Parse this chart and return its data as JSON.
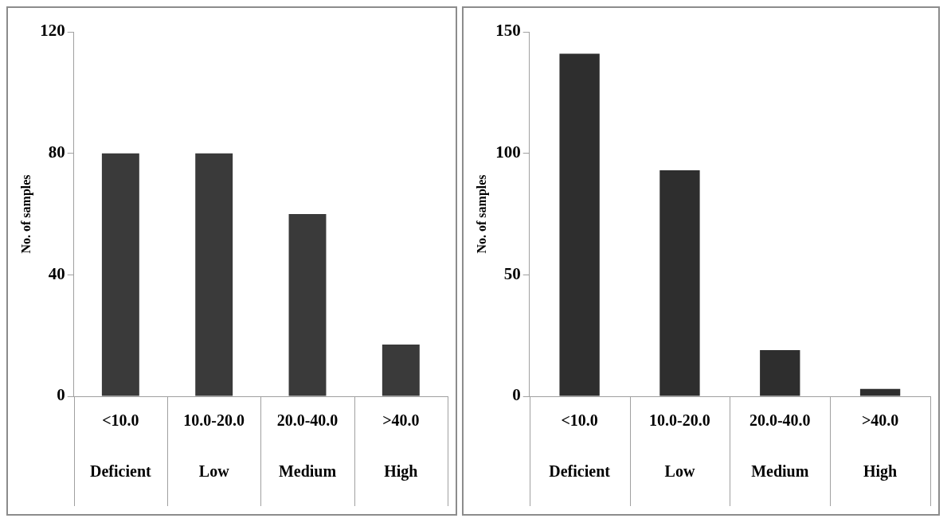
{
  "chart_data": [
    {
      "type": "bar",
      "ylabel": "No. of samples",
      "categories": [
        "<10.0\nDeficient",
        "10.0-20.0\nLow",
        "20.0-40.0\nMedium",
        ">40.0\nHigh"
      ],
      "values": [
        80,
        80,
        60,
        17
      ],
      "color": "#3a3a3a",
      "ylim": [
        0,
        120
      ],
      "yticks": [
        0,
        40,
        80,
        120
      ],
      "grid": false,
      "legend": false
    },
    {
      "type": "bar",
      "ylabel": "No. of samples",
      "categories": [
        "<10.0\nDeficient",
        "10.0-20.0\nLow",
        "20.0-40.0\nMedium",
        ">40.0\nHigh"
      ],
      "values": [
        141,
        93,
        19,
        3
      ],
      "color": "#2e2e2e",
      "ylim": [
        0,
        150
      ],
      "yticks": [
        0,
        50,
        100,
        150
      ],
      "grid": false,
      "legend": false
    }
  ]
}
